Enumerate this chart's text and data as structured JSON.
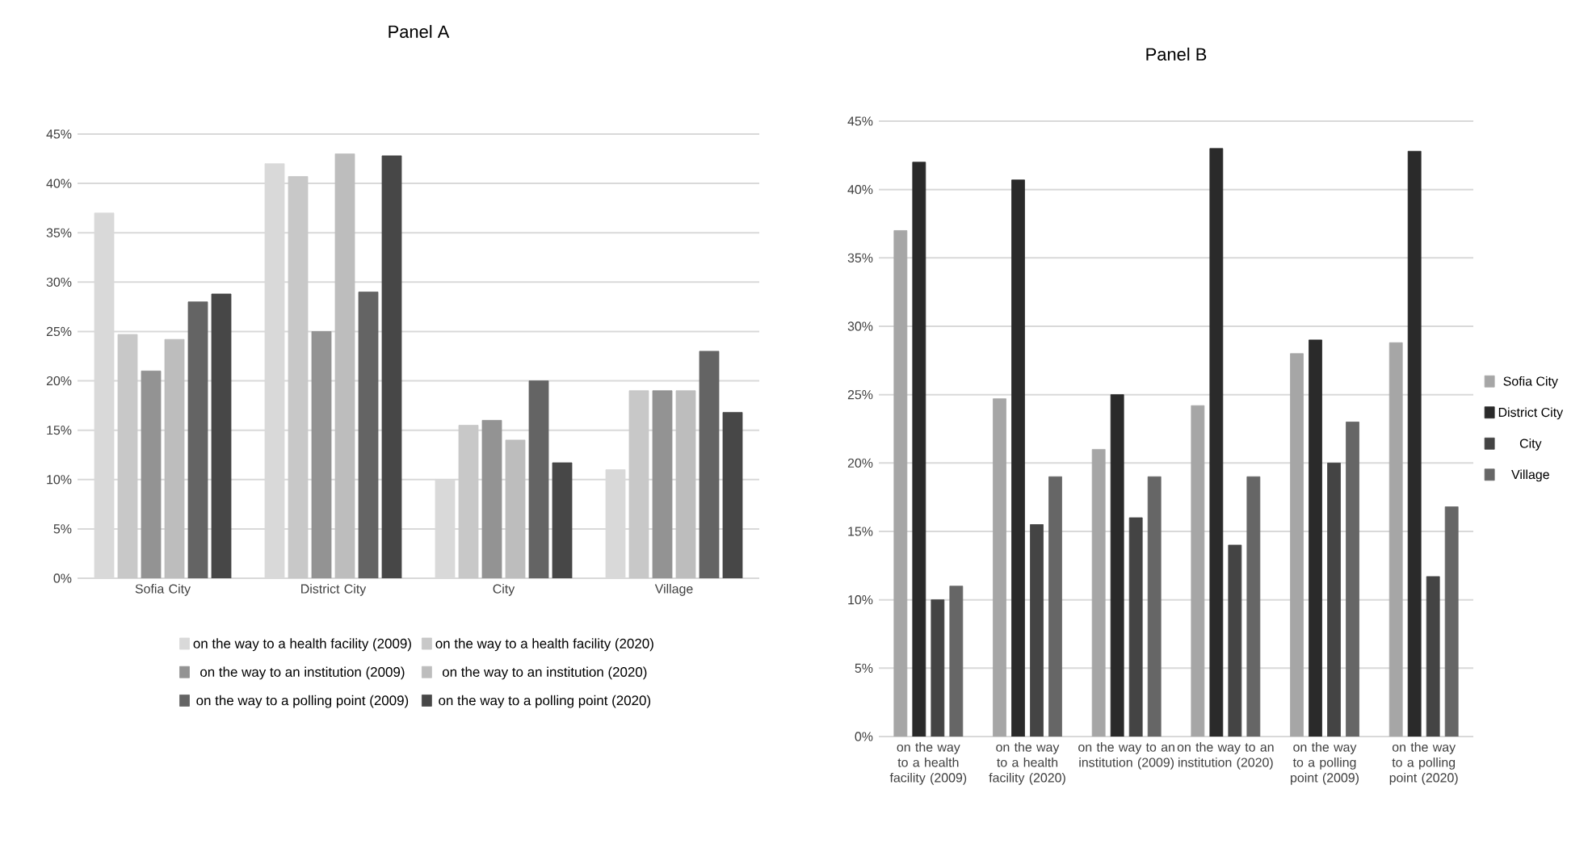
{
  "chart_data": [
    {
      "type": "bar",
      "title": "Panel A",
      "categories": [
        "Sofia City",
        "District City",
        "City",
        "Village"
      ],
      "series": [
        {
          "name": "on the way to a health facility (2009)",
          "color": "#d9d9d9",
          "values": [
            37,
            42,
            10,
            11
          ]
        },
        {
          "name": "on the way to a health facility (2020)",
          "color": "#c8c8c8",
          "values": [
            24.7,
            40.7,
            15.5,
            19
          ]
        },
        {
          "name": "on the way to an institution (2009)",
          "color": "#939393",
          "values": [
            21,
            25,
            16,
            19
          ]
        },
        {
          "name": "on the way to an institution (2020)",
          "color": "#bdbdbd",
          "values": [
            24.2,
            43,
            14,
            19
          ]
        },
        {
          "name": "on the way to a polling point (2009)",
          "color": "#646464",
          "values": [
            28,
            29,
            20,
            23
          ]
        },
        {
          "name": "on the way to a polling point (2020)",
          "color": "#474747",
          "values": [
            28.8,
            42.8,
            11.7,
            16.8
          ]
        }
      ],
      "ylim": [
        0,
        45
      ],
      "yticks": [
        {
          "value": 0,
          "label": "0%"
        },
        {
          "value": 5,
          "label": "5%"
        },
        {
          "value": 10,
          "label": "10%"
        },
        {
          "value": 15,
          "label": "15%"
        },
        {
          "value": 20,
          "label": "20%"
        },
        {
          "value": 25,
          "label": "25%"
        },
        {
          "value": 30,
          "label": "30%"
        },
        {
          "value": 35,
          "label": "35%"
        },
        {
          "value": 40,
          "label": "40%"
        },
        {
          "value": 45,
          "label": "45%"
        }
      ],
      "grid": "y",
      "legend": "bottom"
    },
    {
      "type": "bar",
      "title": "Panel B",
      "categories": [
        "on the way to a health facility (2009)",
        "on the way to a health facility (2020)",
        "on the way to an institution (2009)",
        "on the way to an institution (2020)",
        "on the way to a polling point (2009)",
        "on the way to a polling point (2020)"
      ],
      "series": [
        {
          "name": "Sofia City",
          "color": "#a6a6a6",
          "values": [
            37,
            24.7,
            21,
            24.2,
            28,
            28.8
          ]
        },
        {
          "name": "District City",
          "color": "#2a2a2a",
          "values": [
            42,
            40.7,
            25,
            43,
            29,
            42.8
          ]
        },
        {
          "name": "City",
          "color": "#444444",
          "values": [
            10,
            15.5,
            16,
            14,
            20,
            11.7
          ]
        },
        {
          "name": "Village",
          "color": "#666666",
          "values": [
            11,
            19,
            19,
            19,
            23,
            16.8
          ]
        }
      ],
      "ylim": [
        0,
        45
      ],
      "yticks": [
        {
          "value": 0,
          "label": "0%"
        },
        {
          "value": 5,
          "label": "5%"
        },
        {
          "value": 10,
          "label": "10%"
        },
        {
          "value": 15,
          "label": "15%"
        },
        {
          "value": 20,
          "label": "20%"
        },
        {
          "value": 25,
          "label": "25%"
        },
        {
          "value": 30,
          "label": "30%"
        },
        {
          "value": 35,
          "label": "35%"
        },
        {
          "value": 40,
          "label": "40%"
        },
        {
          "value": 45,
          "label": "45%"
        }
      ],
      "grid": "y",
      "legend": "right"
    }
  ]
}
